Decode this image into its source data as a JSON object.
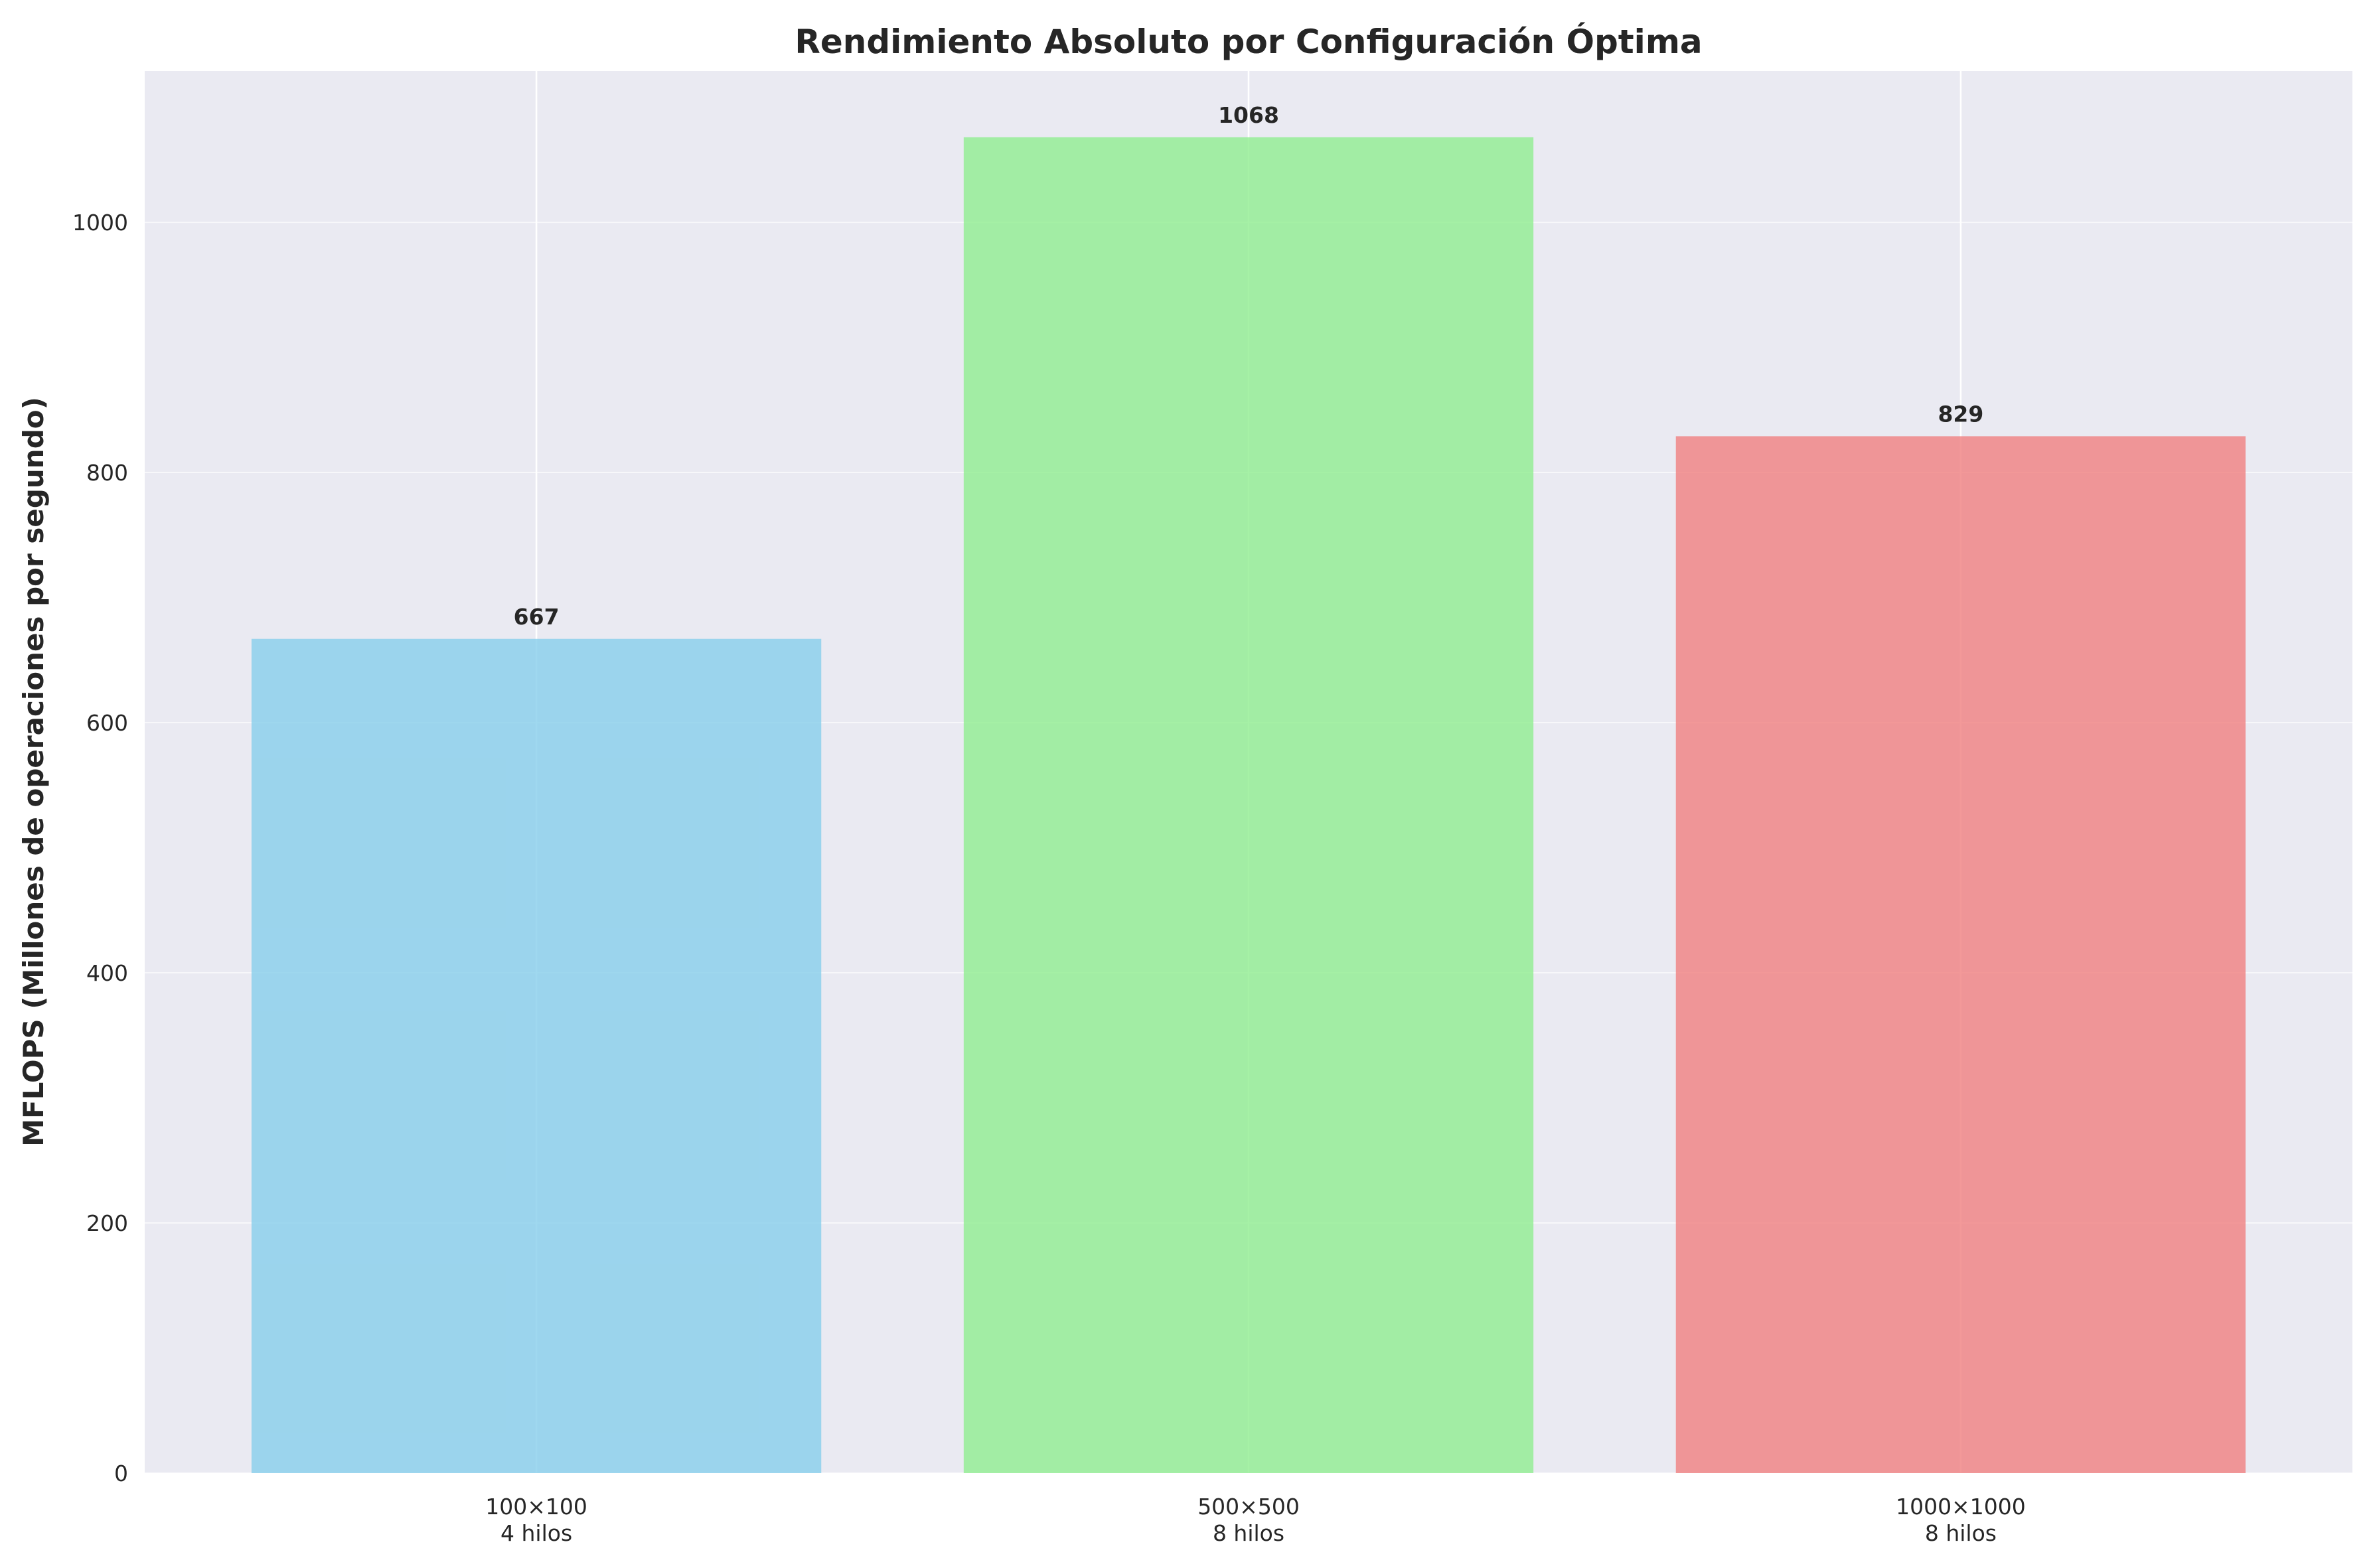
{
  "chart_data": {
    "type": "bar",
    "title": "Rendimiento Absoluto por Configuración Óptima",
    "xlabel": "",
    "ylabel": "MFLOPS (Millones de operaciones por segundo)",
    "categories": [
      {
        "line1": "100×100",
        "line2": "4 hilos"
      },
      {
        "line1": "500×500",
        "line2": "8 hilos"
      },
      {
        "line1": "1000×1000",
        "line2": "8 hilos"
      }
    ],
    "values": [
      667,
      1068,
      829
    ],
    "data_labels": [
      "667",
      "1068",
      "829"
    ],
    "colors": [
      "#87CEEB",
      "#90EE90",
      "#F08080"
    ],
    "ylim": [
      0,
      1121
    ],
    "yticks": [
      0,
      200,
      400,
      600,
      800,
      1000
    ],
    "ytick_labels": [
      "0",
      "200",
      "400",
      "600",
      "800",
      "1000"
    ],
    "grid": true,
    "background": "#EAEAF2"
  }
}
